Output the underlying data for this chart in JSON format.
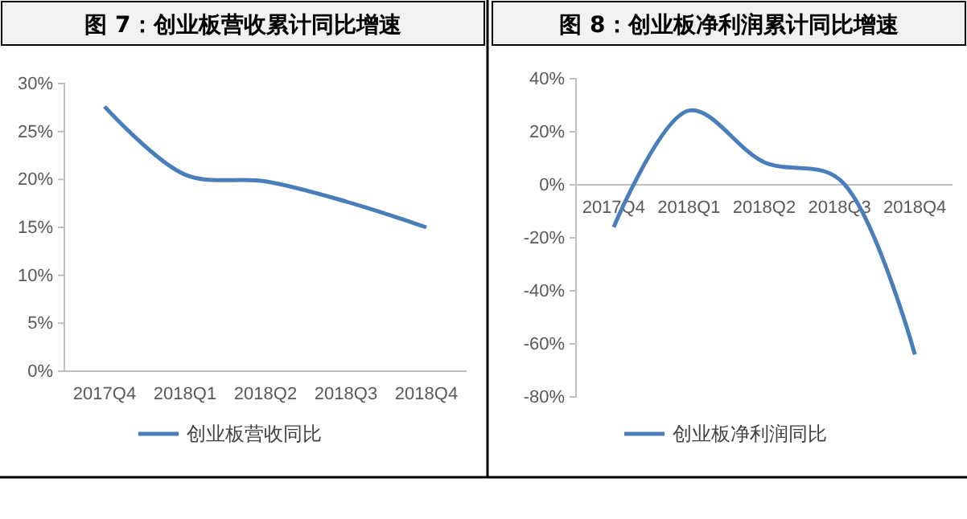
{
  "chart_data": [
    {
      "type": "line",
      "title": "图 7：创业板营收累计同比增速",
      "categories": [
        "2017Q4",
        "2018Q1",
        "2018Q2",
        "2018Q3",
        "2018Q4"
      ],
      "series": [
        {
          "name": "创业板营收同比",
          "color": "#4a7ebb",
          "values": [
            27.6,
            20.5,
            19.8,
            17.7,
            15.0
          ]
        }
      ],
      "ylim": [
        0,
        30
      ],
      "yticks": [
        {
          "value": 0,
          "label": "0%"
        },
        {
          "value": 5,
          "label": "5%"
        },
        {
          "value": 10,
          "label": "10%"
        },
        {
          "value": 15,
          "label": "15%"
        },
        {
          "value": 20,
          "label": "20%"
        },
        {
          "value": 25,
          "label": "25%"
        },
        {
          "value": 30,
          "label": "30%"
        }
      ],
      "legend": "bottom",
      "marker": "none",
      "line_style": "solid",
      "grid": false
    },
    {
      "type": "line",
      "title": "图 8：创业板净利润累计同比增速",
      "categories": [
        "2017Q4",
        "2018Q1",
        "2018Q2",
        "2018Q3",
        "2018Q4"
      ],
      "series": [
        {
          "name": "创业板净利润同比",
          "color": "#4a7ebb",
          "values": [
            -16,
            28,
            8.5,
            2,
            -64
          ]
        }
      ],
      "ylim": [
        -80,
        40
      ],
      "yticks": [
        {
          "value": -80,
          "label": "-80%"
        },
        {
          "value": -60,
          "label": "-60%"
        },
        {
          "value": -40,
          "label": "-40%"
        },
        {
          "value": -20,
          "label": "-20%"
        },
        {
          "value": 0,
          "label": "0%"
        },
        {
          "value": 20,
          "label": "20%"
        },
        {
          "value": 40,
          "label": "40%"
        }
      ],
      "legend": "bottom",
      "marker": "none",
      "line_style": "solid",
      "grid": false
    }
  ]
}
